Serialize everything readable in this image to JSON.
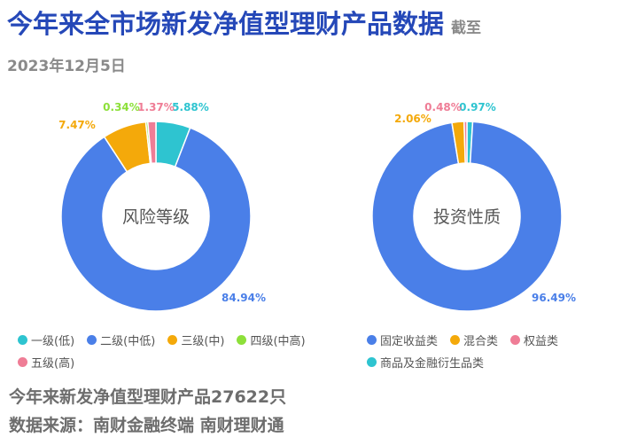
{
  "header": {
    "title": "今年来全市场新发净值型理财产品数据",
    "date_note": "截至2023年12月5日"
  },
  "chart_data": [
    {
      "type": "pie",
      "donut": true,
      "center_label": "风险等级",
      "slices": [
        {
          "name": "一级(低)",
          "value": 5.88,
          "label": "5.88%",
          "color": "#2ec4d0"
        },
        {
          "name": "二级(中低)",
          "value": 84.94,
          "label": "84.94%",
          "color": "#4a7fe8"
        },
        {
          "name": "三级(中)",
          "value": 7.47,
          "label": "7.47%",
          "color": "#f4a90a"
        },
        {
          "name": "四级(中高)",
          "value": 0.34,
          "label": "0.34%",
          "color": "#8de03a"
        },
        {
          "name": "五级(高)",
          "value": 1.37,
          "label": "1.37%",
          "color": "#ef7d96"
        }
      ]
    },
    {
      "type": "pie",
      "donut": true,
      "center_label": "投资性质",
      "slices": [
        {
          "name": "商品及金融衍生品类",
          "value": 0.97,
          "label": "0.97%",
          "color": "#2ec4d0"
        },
        {
          "name": "固定收益类",
          "value": 96.49,
          "label": "96.49%",
          "color": "#4a7fe8"
        },
        {
          "name": "混合类",
          "value": 2.06,
          "label": "2.06%",
          "color": "#f4a90a"
        },
        {
          "name": "权益类",
          "value": 0.48,
          "label": "0.48%",
          "color": "#ef7d96"
        }
      ]
    }
  ],
  "legends": [
    {
      "items": [
        {
          "label": "一级(低)",
          "color": "#2ec4d0"
        },
        {
          "label": "二级(中低)",
          "color": "#4a7fe8"
        },
        {
          "label": "三级(中)",
          "color": "#f4a90a"
        },
        {
          "label": "四级(中高)",
          "color": "#8de03a"
        },
        {
          "label": "五级(高)",
          "color": "#ef7d96"
        }
      ]
    },
    {
      "items": [
        {
          "label": "固定收益类",
          "color": "#4a7fe8"
        },
        {
          "label": "混合类",
          "color": "#f4a90a"
        },
        {
          "label": "权益类",
          "color": "#ef7d96"
        },
        {
          "label": "商品及金融衍生品类",
          "color": "#2ec4d0"
        }
      ]
    }
  ],
  "footer": {
    "total": "今年来新发净值型理财产品27622只",
    "source": "数据来源：南财金融终端 南财理财通"
  }
}
